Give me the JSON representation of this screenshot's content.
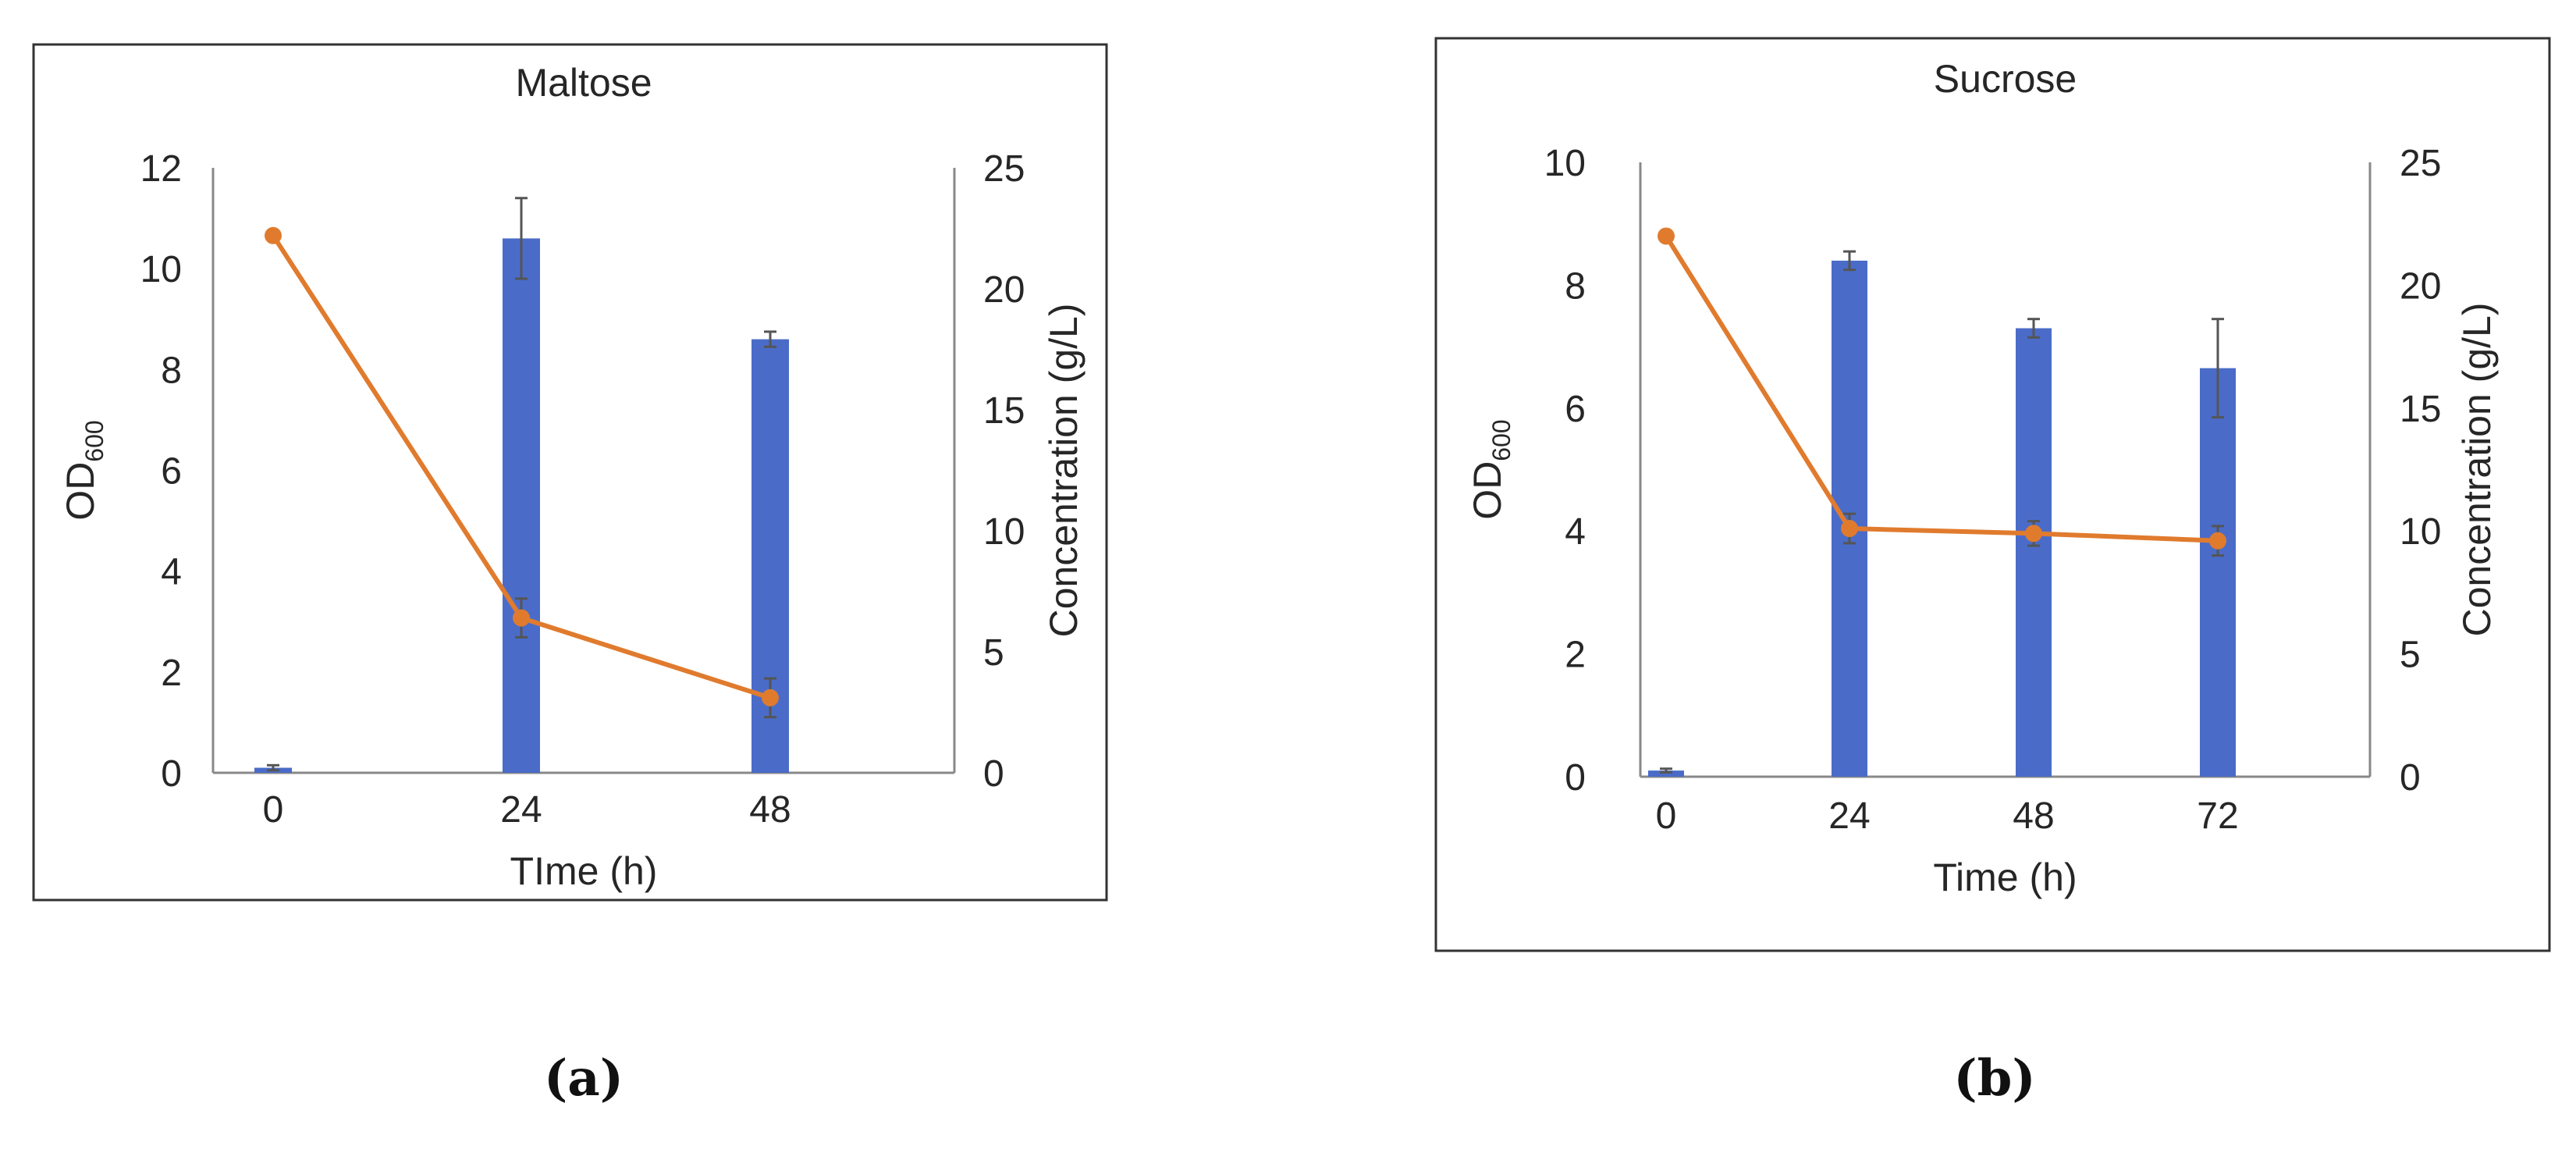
{
  "colors": {
    "bar": "#4a6cc8",
    "line": "#e07b2e",
    "axis": "#888888",
    "frame": "#333333",
    "error": "#555555"
  },
  "chart_data": [
    {
      "type": "bar",
      "combined_with": "line",
      "panel_label": "(a)",
      "title": "Maltose",
      "xlabel": "TIme (h)",
      "ylabel_main": "OD",
      "ylabel_sub": "600",
      "y2label": "Concentration (g/L)",
      "categories": [
        "0",
        "24",
        "48"
      ],
      "ylim": [
        0,
        12
      ],
      "yticks": [
        "0",
        "2",
        "4",
        "6",
        "8",
        "10",
        "12"
      ],
      "y2lim": [
        0,
        25
      ],
      "y2ticks": [
        "0",
        "5",
        "10",
        "15",
        "20",
        "25"
      ],
      "bars": {
        "values": [
          0.1,
          10.6,
          8.6
        ],
        "errors": [
          0.05,
          0.8,
          0.15
        ]
      },
      "line": {
        "values": [
          22.2,
          6.4,
          3.1
        ],
        "errors": [
          0,
          0.8,
          0.8
        ]
      },
      "grid": false,
      "legend": "none"
    },
    {
      "type": "bar",
      "combined_with": "line",
      "panel_label": "(b)",
      "title": "Sucrose",
      "xlabel": "Time (h)",
      "ylabel_main": "OD",
      "ylabel_sub": "600",
      "y2label": "Concentration (g/L)",
      "categories": [
        "0",
        "24",
        "48",
        "72"
      ],
      "ylim": [
        0,
        10
      ],
      "yticks": [
        "0",
        "2",
        "4",
        "6",
        "8",
        "10"
      ],
      "y2lim": [
        0,
        25
      ],
      "y2ticks": [
        "0",
        "5",
        "10",
        "15",
        "20",
        "25"
      ],
      "bars": {
        "values": [
          0.1,
          8.4,
          7.3,
          6.65
        ],
        "errors": [
          0.03,
          0.15,
          0.15,
          0.8
        ]
      },
      "line": {
        "values": [
          22.0,
          10.1,
          9.9,
          9.6
        ],
        "errors": [
          0,
          0.6,
          0.5,
          0.6
        ]
      },
      "grid": false,
      "legend": "none"
    }
  ]
}
